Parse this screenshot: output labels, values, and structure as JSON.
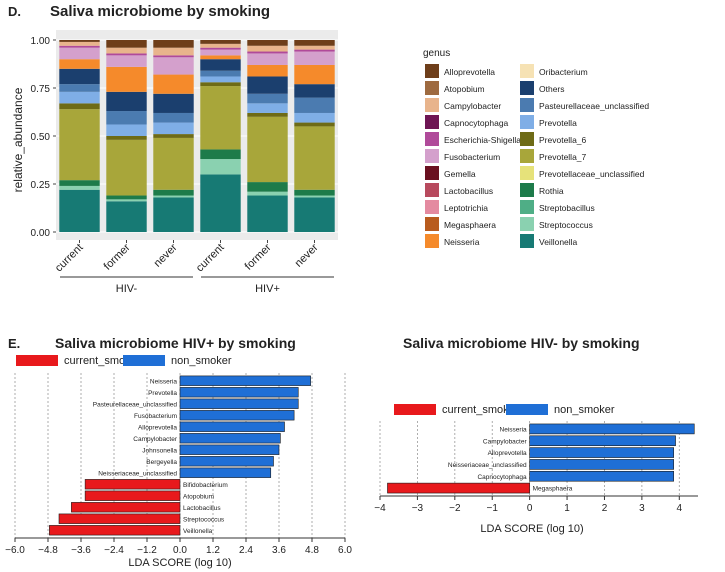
{
  "panel_d": {
    "letter": "D.",
    "chart_data": {
      "type": "bar",
      "stacked": true,
      "title": "Saliva microbiome by smoking",
      "xlabel": "",
      "ylabel": "relative_abundance",
      "ylim": [
        0,
        1.0
      ],
      "yticks": [
        "0.00",
        "0.25",
        "0.50",
        "0.75",
        "1.00"
      ],
      "categories": [
        "current",
        "former",
        "never",
        "current",
        "former",
        "never"
      ],
      "groups": [
        {
          "label": "HIV-",
          "span": [
            0,
            2
          ]
        },
        {
          "label": "HIV+",
          "span": [
            3,
            5
          ]
        }
      ],
      "legend_title": "genus",
      "series": [
        {
          "name": "Veillonella",
          "color": "#177a74",
          "values": [
            0.22,
            0.16,
            0.18,
            0.3,
            0.19,
            0.18
          ]
        },
        {
          "name": "Streptococcus",
          "color": "#8ad1b0",
          "values": [
            0.02,
            0.01,
            0.01,
            0.08,
            0.02,
            0.01
          ]
        },
        {
          "name": "Streptobacillus",
          "color": "#4fae86",
          "values": [
            0.0,
            0.0,
            0.0,
            0.0,
            0.0,
            0.0
          ]
        },
        {
          "name": "Rothia",
          "color": "#1d7b4a",
          "values": [
            0.03,
            0.02,
            0.03,
            0.05,
            0.05,
            0.03
          ]
        },
        {
          "name": "Prevotellaceae_unclassified",
          "color": "#e6e27a",
          "values": [
            0.0,
            0.0,
            0.0,
            0.0,
            0.0,
            0.0
          ]
        },
        {
          "name": "Prevotella_7",
          "color": "#a8a63a",
          "values": [
            0.37,
            0.29,
            0.27,
            0.33,
            0.34,
            0.33
          ]
        },
        {
          "name": "Prevotella_6",
          "color": "#6e6b16",
          "values": [
            0.03,
            0.02,
            0.02,
            0.02,
            0.02,
            0.02
          ]
        },
        {
          "name": "Prevotella",
          "color": "#7faee6",
          "values": [
            0.06,
            0.06,
            0.06,
            0.03,
            0.05,
            0.05
          ]
        },
        {
          "name": "Pasteurellaceae_unclassified",
          "color": "#4b7bb0",
          "values": [
            0.04,
            0.07,
            0.05,
            0.03,
            0.05,
            0.08
          ]
        },
        {
          "name": "Others",
          "color": "#1b3f6e",
          "values": [
            0.08,
            0.1,
            0.1,
            0.06,
            0.09,
            0.07
          ]
        },
        {
          "name": "Oribacterium",
          "color": "#f6e2b4",
          "values": [
            0.0,
            0.0,
            0.0,
            0.0,
            0.0,
            0.0
          ]
        },
        {
          "name": "Neisseria",
          "color": "#f58a2b",
          "values": [
            0.05,
            0.13,
            0.1,
            0.02,
            0.06,
            0.1
          ]
        },
        {
          "name": "Megasphaera",
          "color": "#b85b1e",
          "values": [
            0.0,
            0.0,
            0.0,
            0.0,
            0.0,
            0.0
          ]
        },
        {
          "name": "Leptotrichia",
          "color": "#e48aa0",
          "values": [
            0.0,
            0.0,
            0.0,
            0.0,
            0.0,
            0.0
          ]
        },
        {
          "name": "Lactobacillus",
          "color": "#b84a5e",
          "values": [
            0.0,
            0.0,
            0.0,
            0.0,
            0.0,
            0.0
          ]
        },
        {
          "name": "Gemella",
          "color": "#6a1020",
          "values": [
            0.0,
            0.0,
            0.0,
            0.0,
            0.0,
            0.0
          ]
        },
        {
          "name": "Fusobacterium",
          "color": "#d4a0cc",
          "values": [
            0.06,
            0.06,
            0.09,
            0.03,
            0.06,
            0.07
          ]
        },
        {
          "name": "Escherichia-Shigella",
          "color": "#b04a9a",
          "values": [
            0.01,
            0.01,
            0.01,
            0.01,
            0.01,
            0.01
          ]
        },
        {
          "name": "Capnocytophaga",
          "color": "#6e1554",
          "values": [
            0.0,
            0.0,
            0.0,
            0.0,
            0.0,
            0.0
          ]
        },
        {
          "name": "Campylobacter",
          "color": "#e8b48c",
          "values": [
            0.02,
            0.03,
            0.04,
            0.02,
            0.03,
            0.02
          ]
        },
        {
          "name": "Atopobium",
          "color": "#9e6a40",
          "values": [
            0.0,
            0.0,
            0.0,
            0.0,
            0.0,
            0.0
          ]
        },
        {
          "name": "Alloprevotella",
          "color": "#6e3e1a",
          "values": [
            0.01,
            0.04,
            0.04,
            0.02,
            0.03,
            0.03
          ]
        }
      ],
      "legend_order": [
        [
          "Alloprevotella",
          "Oribacterium"
        ],
        [
          "Atopobium",
          "Others"
        ],
        [
          "Campylobacter",
          "Pasteurellaceae_unclassified"
        ],
        [
          "Capnocytophaga",
          "Prevotella"
        ],
        [
          "Escherichia-Shigella",
          "Prevotella_6"
        ],
        [
          "Fusobacterium",
          "Prevotella_7"
        ],
        [
          "Gemella",
          "Prevotellaceae_unclassified"
        ],
        [
          "Lactobacillus",
          "Rothia"
        ],
        [
          "Leptotrichia",
          "Streptobacillus"
        ],
        [
          "Megasphaera",
          "Streptococcus"
        ],
        [
          "Neisseria",
          "Veillonella"
        ]
      ]
    }
  },
  "panel_e": {
    "letter": "E.",
    "colors": {
      "current_smoker": "#e8191c",
      "non_smoker": "#1f6fd6"
    },
    "charts": [
      {
        "type": "bar",
        "orientation": "horizontal",
        "title": "Saliva microbiome HIV+ by smoking",
        "xlabel": "LDA SCORE (log 10)",
        "xlim": [
          -6.0,
          6.0
        ],
        "xticks": [
          "−6.0",
          "−4.8",
          "−3.6",
          "−2.4",
          "−1.2",
          "0.0",
          "1.2",
          "2.4",
          "3.6",
          "4.8",
          "6.0"
        ],
        "xtick_values": [
          -6.0,
          -4.8,
          -3.6,
          -2.4,
          -1.2,
          0.0,
          1.2,
          2.4,
          3.6,
          4.8,
          6.0
        ],
        "legend": [
          "current_smoker",
          "non_smoker"
        ],
        "bars": [
          {
            "label": "Neisseria",
            "value": 4.75,
            "group": "non_smoker"
          },
          {
            "label": "Prevotella",
            "value": 4.3,
            "group": "non_smoker"
          },
          {
            "label": "Pasteurellaceae_unclassified",
            "value": 4.3,
            "group": "non_smoker"
          },
          {
            "label": "Fusobacterium",
            "value": 4.15,
            "group": "non_smoker"
          },
          {
            "label": "Alloprevotella",
            "value": 3.8,
            "group": "non_smoker"
          },
          {
            "label": "Campylobacter",
            "value": 3.65,
            "group": "non_smoker"
          },
          {
            "label": "Johnsonella",
            "value": 3.6,
            "group": "non_smoker"
          },
          {
            "label": "Bergeyella",
            "value": 3.4,
            "group": "non_smoker"
          },
          {
            "label": "Neisseriaceae_unclassified",
            "value": 3.3,
            "group": "non_smoker"
          },
          {
            "label": "Bifidobacterium",
            "value": -3.45,
            "group": "current_smoker"
          },
          {
            "label": "Atopobium",
            "value": -3.45,
            "group": "current_smoker"
          },
          {
            "label": "Lactobacillus",
            "value": -3.95,
            "group": "current_smoker"
          },
          {
            "label": "Streptococcus",
            "value": -4.4,
            "group": "current_smoker"
          },
          {
            "label": "Veillonella",
            "value": -4.75,
            "group": "current_smoker"
          }
        ]
      },
      {
        "type": "bar",
        "orientation": "horizontal",
        "title": "Saliva microbiome HIV- by smoking",
        "xlabel": "LDA SCORE (log 10)",
        "xlim": [
          -4.0,
          4.5
        ],
        "xticks": [
          "−4",
          "−3",
          "−2",
          "−1",
          "0",
          "1",
          "2",
          "3",
          "4"
        ],
        "xtick_values": [
          -4,
          -3,
          -2,
          -1,
          0,
          1,
          2,
          3,
          4
        ],
        "legend": [
          "current_smoker",
          "non_smoker"
        ],
        "bars": [
          {
            "label": "Neisseria",
            "value": 4.4,
            "group": "non_smoker"
          },
          {
            "label": "Campylobacter",
            "value": 3.9,
            "group": "non_smoker"
          },
          {
            "label": "Alloprevotella",
            "value": 3.85,
            "group": "non_smoker"
          },
          {
            "label": "Neisseriaceae_unclassified",
            "value": 3.85,
            "group": "non_smoker"
          },
          {
            "label": "Capnocytophaga",
            "value": 3.85,
            "group": "non_smoker"
          },
          {
            "label": "Megasphaera",
            "value": -3.8,
            "group": "current_smoker"
          }
        ]
      }
    ]
  }
}
